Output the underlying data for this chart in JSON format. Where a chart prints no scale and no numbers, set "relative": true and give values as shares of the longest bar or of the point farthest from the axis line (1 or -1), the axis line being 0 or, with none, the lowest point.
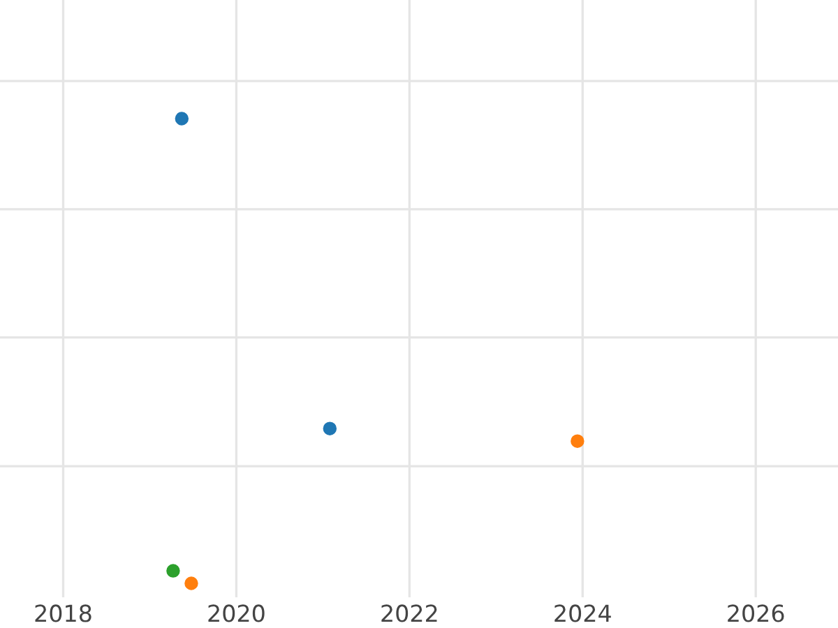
{
  "chart_data": {
    "type": "scatter",
    "relative": true,
    "marker": "circle",
    "grid": true,
    "tick_labels": "x",
    "xlim": [
      2017.27,
      2026.95
    ],
    "xticks": [
      2018,
      2020,
      2022,
      2024,
      2026
    ],
    "series": [
      {
        "color": "#1f77b4",
        "x": [
          2019.37,
          2021.08
        ],
        "values": [
          1,
          0.333
        ]
      },
      {
        "color": "#ff7f0e",
        "x": [
          2023.94,
          2019.48
        ],
        "values": [
          0.306,
          0
        ]
      },
      {
        "color": "#2ca02c",
        "x": [
          2019.27
        ],
        "values": [
          0.027
        ]
      }
    ]
  }
}
